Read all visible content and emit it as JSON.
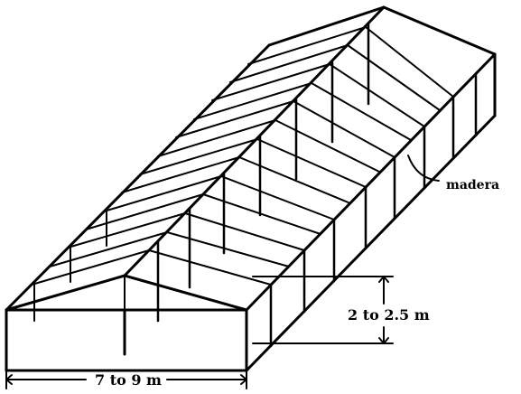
{
  "labels": {
    "wood": "madera",
    "height": "2 to 2.5 m",
    "width": "7 to 9 m"
  }
}
